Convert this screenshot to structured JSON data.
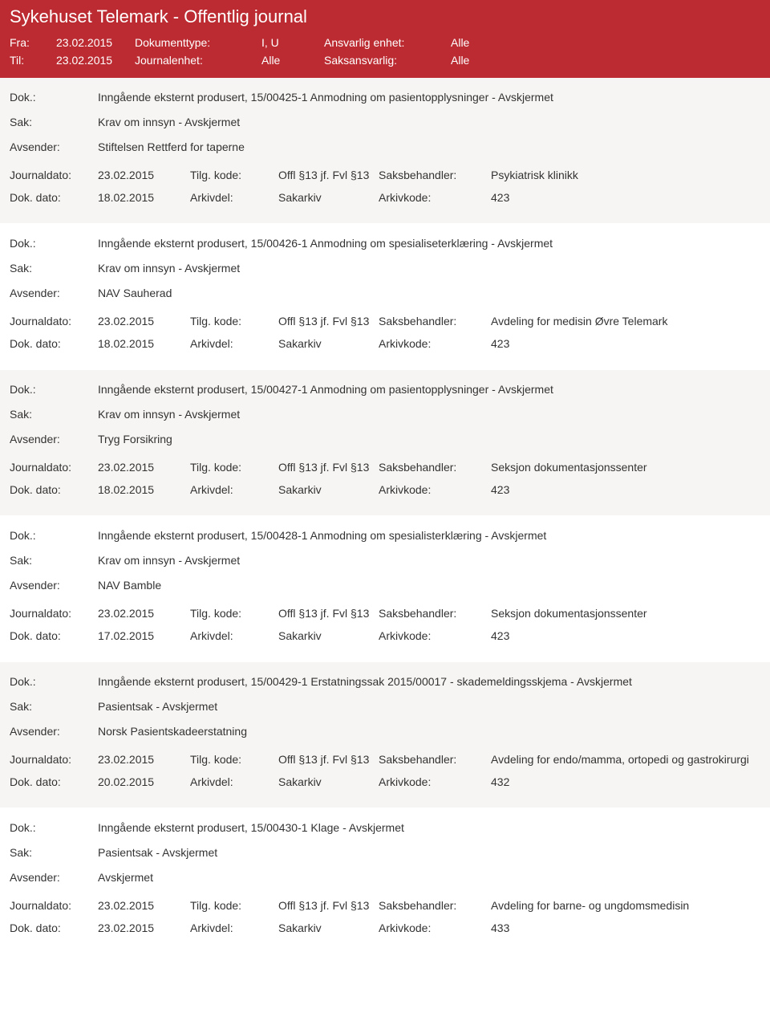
{
  "header": {
    "title": "Sykehuset Telemark - Offentlig journal",
    "fra_label": "Fra:",
    "fra_value": "23.02.2015",
    "til_label": "Til:",
    "til_value": "23.02.2015",
    "doktype_label": "Dokumenttype:",
    "doktype_value": "I, U",
    "journalenhet_label": "Journalenhet:",
    "journalenhet_value": "Alle",
    "ansvarlig_label": "Ansvarlig enhet:",
    "ansvarlig_value": "Alle",
    "saksansvarlig_label": "Saksansvarlig:",
    "saksansvarlig_value": "Alle"
  },
  "labels": {
    "dok": "Dok.:",
    "sak": "Sak:",
    "avsender": "Avsender:",
    "journaldato": "Journaldato:",
    "tilgkode": "Tilg. kode:",
    "saksbehandler": "Saksbehandler:",
    "dokdato": "Dok. dato:",
    "arkivdel": "Arkivdel:",
    "arkivkode": "Arkivkode:"
  },
  "entries": [
    {
      "dok": "Inngående eksternt produsert, 15/00425-1 Anmodning om pasientopplysninger - Avskjermet",
      "sak": "Krav om innsyn - Avskjermet",
      "avsender": "Stiftelsen Rettferd for taperne",
      "journaldato": "23.02.2015",
      "tilgkode": "Offl §13 jf. Fvl §13",
      "saksbehandler": "Psykiatrisk klinikk",
      "dokdato": "18.02.2015",
      "arkivdel": "Sakarkiv",
      "arkivkode": "423"
    },
    {
      "dok": "Inngående eksternt produsert, 15/00426-1 Anmodning om spesialiseterklæring - Avskjermet",
      "sak": "Krav om innsyn - Avskjermet",
      "avsender": "NAV Sauherad",
      "journaldato": "23.02.2015",
      "tilgkode": "Offl §13 jf. Fvl §13",
      "saksbehandler": "Avdeling for medisin Øvre Telemark",
      "dokdato": "18.02.2015",
      "arkivdel": "Sakarkiv",
      "arkivkode": "423"
    },
    {
      "dok": "Inngående eksternt produsert, 15/00427-1 Anmodning om pasientopplysninger - Avskjermet",
      "sak": "Krav om innsyn - Avskjermet",
      "avsender": "Tryg Forsikring",
      "journaldato": "23.02.2015",
      "tilgkode": "Offl §13 jf. Fvl §13",
      "saksbehandler": "Seksjon dokumentasjonssenter",
      "dokdato": "18.02.2015",
      "arkivdel": "Sakarkiv",
      "arkivkode": "423"
    },
    {
      "dok": "Inngående eksternt produsert, 15/00428-1 Anmodning om spesialisterklæring - Avskjermet",
      "sak": "Krav om innsyn - Avskjermet",
      "avsender": "NAV Bamble",
      "journaldato": "23.02.2015",
      "tilgkode": "Offl §13 jf. Fvl §13",
      "saksbehandler": "Seksjon dokumentasjonssenter",
      "dokdato": "17.02.2015",
      "arkivdel": "Sakarkiv",
      "arkivkode": "423"
    },
    {
      "dok": "Inngående eksternt produsert, 15/00429-1 Erstatningssak 2015/00017 - skademeldingsskjema - Avskjermet",
      "sak": "Pasientsak - Avskjermet",
      "avsender": "Norsk Pasientskadeerstatning",
      "journaldato": "23.02.2015",
      "tilgkode": "Offl §13 jf. Fvl §13",
      "saksbehandler": "Avdeling for endo/mamma, ortopedi og gastrokirurgi",
      "dokdato": "20.02.2015",
      "arkivdel": "Sakarkiv",
      "arkivkode": "432"
    },
    {
      "dok": "Inngående eksternt produsert, 15/00430-1 Klage - Avskjermet",
      "sak": "Pasientsak - Avskjermet",
      "avsender": "Avskjermet",
      "journaldato": "23.02.2015",
      "tilgkode": "Offl §13 jf. Fvl §13",
      "saksbehandler": "Avdeling for barne- og ungdomsmedisin",
      "dokdato": "23.02.2015",
      "arkivdel": "Sakarkiv",
      "arkivkode": "433"
    }
  ]
}
